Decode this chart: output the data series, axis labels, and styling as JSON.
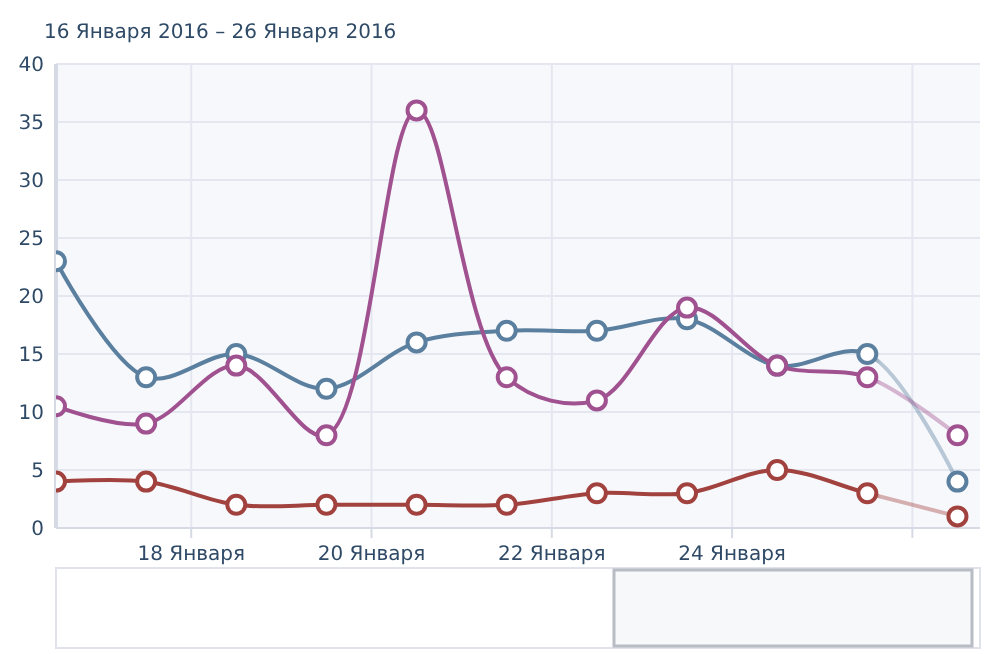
{
  "chart_data": {
    "type": "line",
    "title": "16 Января 2016 – 26 Января 2016",
    "x": [
      "2016-01-16T12:00",
      "2016-01-17T12:00",
      "2016-01-18T12:00",
      "2016-01-19T12:00",
      "2016-01-20T12:00",
      "2016-01-21T12:00",
      "2016-01-22T12:00",
      "2016-01-23T12:00",
      "2016-01-24T12:00",
      "2016-01-25T12:00",
      "2016-01-26T12:00"
    ],
    "series": [
      {
        "color": "#5b7f9e",
        "values": [
          23,
          13,
          15,
          12,
          16,
          17,
          17,
          18,
          14,
          15,
          4
        ]
      },
      {
        "color": "#a0518f",
        "values": [
          10.5,
          9,
          14,
          8,
          36,
          13,
          11,
          19,
          14,
          13,
          8
        ]
      },
      {
        "color": "#a2423f",
        "values": [
          4,
          4,
          2,
          2,
          2,
          2,
          3,
          3,
          5,
          3,
          1
        ]
      }
    ],
    "xlim": [
      "2016-01-16T12:00",
      "2016-01-26T18:00"
    ],
    "xticks": [
      {
        "value": "2016-01-18",
        "label": "18 Января"
      },
      {
        "value": "2016-01-20",
        "label": "20 Января"
      },
      {
        "value": "2016-01-22",
        "label": "22 Января"
      },
      {
        "value": "2016-01-24",
        "label": "24 Января"
      },
      {
        "value": "2016-01-26",
        "label": null
      }
    ],
    "ylim": [
      0,
      40
    ],
    "yticks": [
      0,
      5,
      10,
      15,
      20,
      25,
      30,
      35,
      40
    ],
    "grid": true,
    "marker": "circle",
    "line_style": "solid"
  }
}
